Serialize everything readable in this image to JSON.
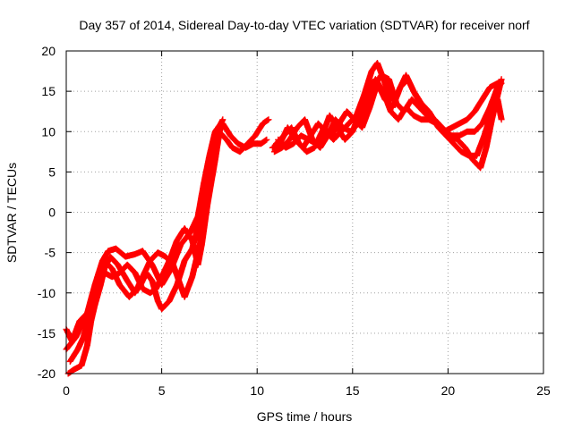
{
  "chart_data": {
    "type": "scatter",
    "title": "Day 357 of 2014, Sidereal Day-to-day VTEC variation (SDTVAR) for receiver norf",
    "xlabel": "GPS time / hours",
    "ylabel": "SDTVAR / TECUs",
    "xlim": [
      0,
      25
    ],
    "ylim": [
      -20,
      20
    ],
    "xticks": [
      "0",
      "5",
      "10",
      "15",
      "20",
      "25"
    ],
    "yticks": [
      "-20",
      "-15",
      "-10",
      "-5",
      "0",
      "5",
      "10",
      "15",
      "20"
    ],
    "grid": true,
    "legend": "none",
    "marker": "plus",
    "series": [
      {
        "color": "#ff0000",
        "tracks": [
          [
            [
              0.0,
              -14.5
            ],
            [
              0.3,
              -16.0
            ],
            [
              0.7,
              -13.5
            ],
            [
              1.1,
              -12.5
            ],
            [
              1.5,
              -9.0
            ],
            [
              1.9,
              -6.0
            ],
            [
              2.2,
              -4.8
            ],
            [
              2.6,
              -4.5
            ],
            [
              3.1,
              -5.5
            ],
            [
              3.6,
              -5.2
            ],
            [
              4.0,
              -4.8
            ],
            [
              4.5,
              -6.5
            ],
            [
              5.0,
              -9.0
            ],
            [
              5.5,
              -7.0
            ],
            [
              6.0,
              -4.0
            ],
            [
              6.5,
              -2.5
            ],
            [
              6.9,
              -0.5
            ],
            [
              7.2,
              3.5
            ],
            [
              7.5,
              7.0
            ],
            [
              7.8,
              10.0
            ],
            [
              8.1,
              11.0
            ]
          ],
          [
            [
              0.1,
              -20.0
            ],
            [
              0.4,
              -19.5
            ],
            [
              0.8,
              -19.0
            ],
            [
              1.1,
              -16.5
            ],
            [
              1.3,
              -13.5
            ],
            [
              1.5,
              -11.5
            ],
            [
              1.8,
              -9.0
            ],
            [
              2.0,
              -7.0
            ],
            [
              2.3,
              -5.5
            ],
            [
              2.7,
              -6.5
            ],
            [
              3.2,
              -8.5
            ],
            [
              3.6,
              -10.0
            ],
            [
              3.9,
              -9.0
            ],
            [
              4.2,
              -7.5
            ],
            [
              4.5,
              -8.5
            ],
            [
              4.8,
              -11.0
            ],
            [
              5.0,
              -12.0
            ],
            [
              5.4,
              -11.0
            ],
            [
              5.8,
              -9.0
            ],
            [
              6.2,
              -6.0
            ],
            [
              6.6,
              -4.5
            ],
            [
              7.0,
              -1.0
            ],
            [
              7.4,
              3.5
            ],
            [
              7.7,
              7.5
            ],
            [
              8.0,
              10.5
            ],
            [
              8.2,
              11.5
            ]
          ],
          [
            [
              0.0,
              -17.0
            ],
            [
              0.5,
              -15.5
            ],
            [
              1.0,
              -13.0
            ],
            [
              1.4,
              -11.0
            ],
            [
              1.7,
              -8.5
            ],
            [
              2.0,
              -6.0
            ],
            [
              2.4,
              -7.0
            ],
            [
              2.8,
              -9.0
            ],
            [
              3.3,
              -10.5
            ],
            [
              3.7,
              -9.5
            ],
            [
              4.1,
              -7.5
            ],
            [
              4.4,
              -6.0
            ],
            [
              4.8,
              -5.0
            ],
            [
              5.2,
              -5.5
            ],
            [
              5.6,
              -6.5
            ],
            [
              5.9,
              -8.5
            ],
            [
              6.2,
              -10.5
            ],
            [
              6.6,
              -8.0
            ],
            [
              7.0,
              -4.0
            ],
            [
              7.3,
              0.5
            ],
            [
              7.6,
              5.0
            ],
            [
              7.9,
              9.0
            ],
            [
              8.1,
              10.5
            ]
          ],
          [
            [
              0.2,
              -18.5
            ],
            [
              0.6,
              -17.0
            ],
            [
              0.9,
              -15.5
            ],
            [
              1.3,
              -12.0
            ],
            [
              1.6,
              -9.5
            ],
            [
              2.0,
              -7.5
            ],
            [
              2.4,
              -8.0
            ],
            [
              2.8,
              -7.5
            ],
            [
              3.2,
              -6.5
            ],
            [
              3.6,
              -7.5
            ],
            [
              4.0,
              -9.5
            ],
            [
              4.4,
              -10.0
            ],
            [
              4.7,
              -9.5
            ],
            [
              5.0,
              -8.0
            ],
            [
              5.4,
              -6.0
            ],
            [
              5.8,
              -3.5
            ],
            [
              6.2,
              -2.0
            ],
            [
              6.6,
              -3.5
            ],
            [
              6.9,
              -6.5
            ],
            [
              7.1,
              -4.0
            ],
            [
              7.4,
              1.0
            ],
            [
              7.8,
              6.5
            ],
            [
              8.0,
              9.5
            ]
          ],
          [
            [
              8.0,
              10.0
            ],
            [
              8.4,
              9.0
            ],
            [
              8.7,
              8.0
            ],
            [
              9.1,
              7.5
            ],
            [
              9.5,
              8.5
            ],
            [
              9.9,
              9.5
            ],
            [
              10.3,
              11.0
            ],
            [
              10.6,
              11.5
            ]
          ],
          [
            [
              8.2,
              11.0
            ],
            [
              8.6,
              9.5
            ],
            [
              9.0,
              8.5
            ],
            [
              9.4,
              8.0
            ],
            [
              9.8,
              8.5
            ],
            [
              10.2,
              8.5
            ],
            [
              10.5,
              9.0
            ]
          ],
          [
            [
              10.8,
              8.0
            ],
            [
              11.2,
              8.5
            ],
            [
              11.6,
              10.5
            ],
            [
              12.0,
              9.0
            ],
            [
              12.4,
              8.0
            ],
            [
              12.8,
              9.5
            ],
            [
              13.2,
              11.0
            ],
            [
              13.6,
              10.0
            ],
            [
              14.0,
              9.0
            ],
            [
              14.4,
              10.0
            ],
            [
              14.8,
              11.0
            ],
            [
              15.2,
              12.0
            ],
            [
              15.6,
              14.5
            ],
            [
              16.0,
              17.5
            ],
            [
              16.3,
              18.5
            ],
            [
              16.7,
              16.0
            ],
            [
              17.0,
              14.0
            ],
            [
              17.4,
              15.0
            ],
            [
              17.8,
              17.0
            ],
            [
              18.2,
              15.0
            ],
            [
              18.6,
              13.5
            ],
            [
              19.0,
              12.5
            ],
            [
              19.4,
              11.0
            ],
            [
              19.8,
              10.0
            ],
            [
              20.2,
              10.5
            ],
            [
              20.6,
              11.0
            ],
            [
              21.0,
              11.5
            ],
            [
              21.4,
              12.5
            ],
            [
              21.8,
              14.0
            ],
            [
              22.2,
              15.5
            ],
            [
              22.6,
              16.0
            ]
          ],
          [
            [
              10.9,
              7.5
            ],
            [
              11.3,
              8.0
            ],
            [
              11.7,
              9.0
            ],
            [
              12.1,
              10.5
            ],
            [
              12.5,
              11.5
            ],
            [
              12.9,
              9.0
            ],
            [
              13.3,
              8.0
            ],
            [
              13.7,
              9.5
            ],
            [
              14.1,
              11.5
            ],
            [
              14.5,
              10.5
            ],
            [
              14.9,
              10.0
            ],
            [
              15.3,
              11.0
            ],
            [
              15.7,
              13.0
            ],
            [
              16.1,
              15.5
            ],
            [
              16.5,
              17.0
            ],
            [
              16.9,
              16.5
            ],
            [
              17.3,
              13.5
            ],
            [
              17.7,
              12.5
            ],
            [
              18.1,
              14.0
            ],
            [
              18.5,
              13.0
            ],
            [
              18.9,
              12.0
            ],
            [
              19.3,
              11.5
            ],
            [
              19.7,
              10.5
            ],
            [
              20.1,
              9.5
            ],
            [
              20.5,
              9.0
            ],
            [
              20.9,
              8.0
            ],
            [
              21.3,
              6.5
            ],
            [
              21.7,
              5.5
            ],
            [
              22.0,
              8.0
            ],
            [
              22.3,
              11.5
            ],
            [
              22.6,
              14.5
            ],
            [
              22.8,
              16.5
            ]
          ],
          [
            [
              11.0,
              8.5
            ],
            [
              11.4,
              9.5
            ],
            [
              11.8,
              10.5
            ],
            [
              12.2,
              8.5
            ],
            [
              12.6,
              7.5
            ],
            [
              13.0,
              8.0
            ],
            [
              13.4,
              9.5
            ],
            [
              13.8,
              12.0
            ],
            [
              14.2,
              10.5
            ],
            [
              14.6,
              9.0
            ],
            [
              15.0,
              10.0
            ],
            [
              15.4,
              12.5
            ],
            [
              15.8,
              15.0
            ],
            [
              16.2,
              16.5
            ],
            [
              16.6,
              15.0
            ],
            [
              17.0,
              12.5
            ],
            [
              17.4,
              11.5
            ],
            [
              17.8,
              13.0
            ],
            [
              18.2,
              12.0
            ],
            [
              18.6,
              11.5
            ],
            [
              19.0,
              11.5
            ],
            [
              19.4,
              11.0
            ],
            [
              19.8,
              10.0
            ],
            [
              20.2,
              9.5
            ],
            [
              20.6,
              9.5
            ],
            [
              21.0,
              10.0
            ],
            [
              21.4,
              10.0
            ],
            [
              21.8,
              11.0
            ],
            [
              22.2,
              13.0
            ],
            [
              22.6,
              15.5
            ],
            [
              22.8,
              16.0
            ]
          ],
          [
            [
              11.1,
              9.0
            ],
            [
              11.5,
              8.0
            ],
            [
              11.9,
              8.5
            ],
            [
              12.3,
              9.5
            ],
            [
              12.7,
              9.0
            ],
            [
              13.1,
              8.5
            ],
            [
              13.5,
              10.5
            ],
            [
              13.9,
              9.5
            ],
            [
              14.3,
              11.0
            ],
            [
              14.7,
              12.5
            ],
            [
              15.1,
              11.5
            ],
            [
              15.5,
              10.5
            ],
            [
              15.9,
              13.0
            ],
            [
              16.3,
              16.0
            ],
            [
              16.7,
              14.0
            ],
            [
              17.1,
              13.0
            ],
            [
              17.5,
              15.5
            ],
            [
              17.9,
              16.5
            ],
            [
              18.3,
              14.5
            ],
            [
              18.7,
              13.0
            ],
            [
              19.1,
              12.0
            ],
            [
              19.5,
              10.5
            ],
            [
              19.9,
              9.5
            ],
            [
              20.3,
              8.5
            ],
            [
              20.7,
              7.5
            ],
            [
              21.1,
              7.0
            ],
            [
              21.5,
              7.0
            ],
            [
              21.9,
              9.5
            ],
            [
              22.3,
              12.5
            ],
            [
              22.6,
              14.0
            ],
            [
              22.8,
              11.5
            ]
          ]
        ]
      }
    ]
  }
}
